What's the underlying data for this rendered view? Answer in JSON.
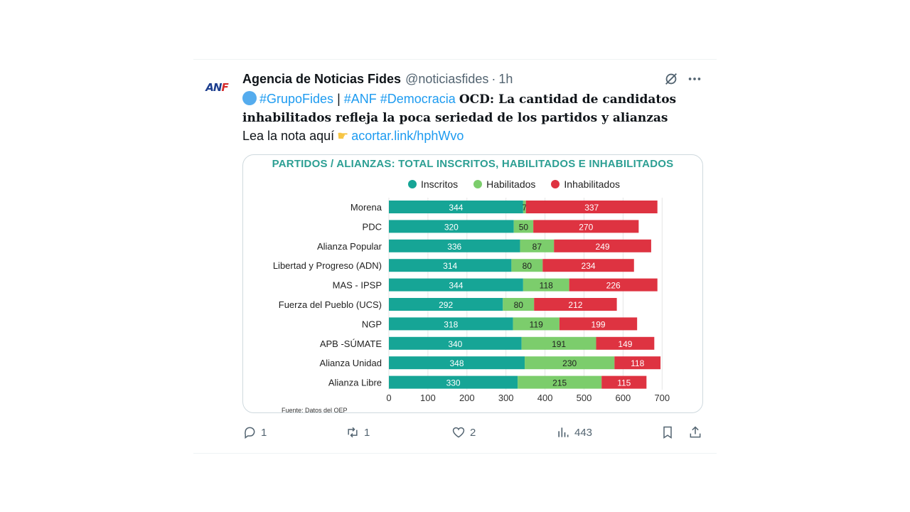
{
  "tweet": {
    "display_name": "Agencia de Noticias Fides",
    "handle": "@noticiasfides",
    "separator": "·",
    "time": "1h",
    "avatar_text": "ANF",
    "text": {
      "hashtag1": "#GrupoFides",
      "pipe": " | ",
      "hashtag2": "#ANF",
      "hashtag3": "#Democracia",
      "headline": "OCD: La cantidad de candidatos inhabilitados refleja la poca seriedad de los partidos y alianzas",
      "read_more": "Lea la nota aquí",
      "link": "acortar.link/hphWvo"
    }
  },
  "actions": {
    "reply_count": "1",
    "retweet_count": "1",
    "like_count": "2",
    "views_count": "443"
  },
  "icons": {
    "grok": "grok-icon",
    "more": "more-icon",
    "reply": "reply-icon",
    "retweet": "retweet-icon",
    "like": "heart-icon",
    "views": "views-icon",
    "bookmark": "bookmark-icon",
    "share": "share-icon"
  },
  "chart_data": {
    "type": "bar",
    "stacked": true,
    "orientation": "horizontal",
    "title": "PARTIDOS / ALIANZAS: TOTAL INSCRITOS, HABILITADOS E INHABILITADOS",
    "categories": [
      "Morena",
      "PDC",
      "Alianza Popular",
      "Libertad y Progreso (ADN)",
      "MAS - IPSP",
      "Fuerza del Pueblo (UCS)",
      "NGP",
      "APB -SÚMATE",
      "Alianza Unidad",
      "Alianza Libre"
    ],
    "series": [
      {
        "name": "Inscritos",
        "color": "#16a596",
        "values": [
          344,
          320,
          336,
          314,
          344,
          292,
          318,
          340,
          348,
          330
        ]
      },
      {
        "name": "Habilitados",
        "color": "#7ccd6c",
        "values": [
          7,
          50,
          87,
          80,
          118,
          80,
          119,
          191,
          230,
          215
        ]
      },
      {
        "name": "Inhabilitados",
        "color": "#de3341",
        "values": [
          337,
          270,
          249,
          234,
          226,
          212,
          199,
          149,
          118,
          115
        ]
      }
    ],
    "xlim": [
      0,
      700
    ],
    "xticks": [
      0,
      100,
      200,
      300,
      400,
      500,
      600,
      700
    ],
    "legend_position": "top",
    "source": "Fuente: Datos del OEP"
  }
}
